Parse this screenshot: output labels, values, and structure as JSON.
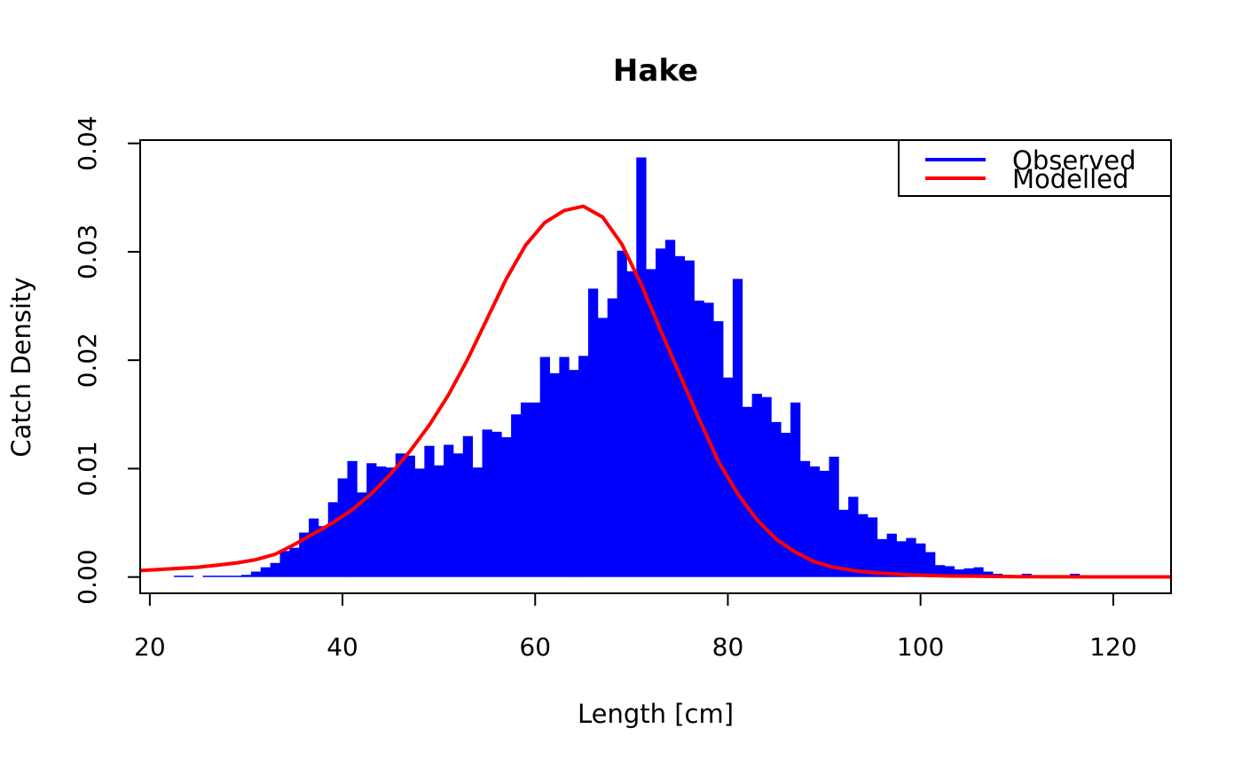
{
  "chart_data": {
    "type": "bar",
    "title": "Hake",
    "xlabel": "Length [cm]",
    "ylabel": "Catch Density",
    "xlim": [
      19,
      126
    ],
    "ylim": [
      -0.0015,
      0.0403
    ],
    "x_ticks": [
      20,
      40,
      60,
      80,
      100,
      120
    ],
    "y_ticks": [
      0.0,
      0.01,
      0.02,
      0.03,
      0.04
    ],
    "x_tick_labels": [
      "20",
      "40",
      "60",
      "80",
      "100",
      "120"
    ],
    "y_tick_labels": [
      "0.00",
      "0.01",
      "0.02",
      "0.03",
      "0.04"
    ],
    "grid": false,
    "legend": {
      "position": "top-right",
      "entries": [
        {
          "label": "Observed",
          "color": "#0000ff"
        },
        {
          "label": "Modelled",
          "color": "#ff0000"
        }
      ]
    },
    "series": [
      {
        "name": "Observed",
        "type": "bar",
        "color": "#0000ff",
        "bin_width": 1,
        "x": [
          23,
          24,
          25,
          26,
          27,
          28,
          29,
          30,
          31,
          32,
          33,
          34,
          35,
          36,
          37,
          38,
          39,
          40,
          41,
          42,
          43,
          44,
          45,
          46,
          47,
          48,
          49,
          50,
          51,
          52,
          53,
          54,
          55,
          56,
          57,
          58,
          59,
          60,
          61,
          62,
          63,
          64,
          65,
          66,
          67,
          68,
          69,
          70,
          71,
          72,
          73,
          74,
          75,
          76,
          77,
          78,
          79,
          80,
          81,
          82,
          83,
          84,
          85,
          86,
          87,
          88,
          89,
          90,
          91,
          92,
          93,
          94,
          95,
          96,
          97,
          98,
          99,
          100,
          101,
          102,
          103,
          104,
          105,
          106,
          107,
          108,
          109,
          110,
          111,
          112,
          113,
          114,
          115,
          116,
          117,
          118,
          119,
          120,
          121,
          122,
          123,
          124,
          125
        ],
        "values": [
          5e-05,
          5e-05,
          0,
          5e-05,
          0.0001,
          0.0001,
          0.0001,
          0.0002,
          0.0005,
          0.0009,
          0.0013,
          0.0024,
          0.0027,
          0.0041,
          0.0054,
          0.0047,
          0.0069,
          0.0091,
          0.0107,
          0.0078,
          0.0105,
          0.0102,
          0.0101,
          0.0114,
          0.0112,
          0.01,
          0.0121,
          0.0103,
          0.0122,
          0.0114,
          0.013,
          0.0101,
          0.0136,
          0.0134,
          0.0129,
          0.015,
          0.0161,
          0.0161,
          0.0203,
          0.0188,
          0.0203,
          0.0191,
          0.0204,
          0.0266,
          0.0239,
          0.0257,
          0.0301,
          0.0282,
          0.0387,
          0.0284,
          0.0303,
          0.0311,
          0.0296,
          0.0292,
          0.0255,
          0.0253,
          0.0236,
          0.0184,
          0.0275,
          0.0157,
          0.0169,
          0.0166,
          0.0143,
          0.0133,
          0.0161,
          0.0107,
          0.0102,
          0.0098,
          0.0111,
          0.0062,
          0.0074,
          0.0058,
          0.0055,
          0.0035,
          0.004,
          0.0033,
          0.0036,
          0.0031,
          0.0023,
          0.0011,
          0.001,
          0.0007,
          0.0008,
          0.0009,
          0.0005,
          0.0003,
          0.0002,
          0.0001,
          0.0003,
          0.0001,
          0.0001,
          0.0001,
          0.0001,
          0.0003,
          0.0001,
          0,
          0,
          0,
          0,
          0,
          0,
          0,
          0
        ]
      },
      {
        "name": "Modelled",
        "type": "line",
        "color": "#ff0000",
        "x": [
          19,
          21,
          23,
          25,
          27,
          29,
          31,
          33,
          35,
          37,
          39,
          41,
          43,
          45,
          47,
          49,
          51,
          53,
          55,
          57,
          59,
          61,
          63,
          65,
          67,
          69,
          71,
          73,
          75,
          77,
          79,
          81,
          83,
          85,
          87,
          89,
          91,
          93,
          95,
          97,
          99,
          101,
          103,
          105,
          107,
          109,
          111,
          113,
          115,
          117,
          119,
          121,
          123,
          125,
          126
        ],
        "values": [
          0.0006,
          0.0007,
          0.0008,
          0.0009,
          0.0011,
          0.0013,
          0.0016,
          0.0021,
          0.003,
          0.004,
          0.005,
          0.0062,
          0.0077,
          0.0095,
          0.0116,
          0.014,
          0.0168,
          0.0201,
          0.0238,
          0.0275,
          0.0306,
          0.0327,
          0.0338,
          0.0342,
          0.0332,
          0.0307,
          0.027,
          0.0228,
          0.0187,
          0.0146,
          0.0107,
          0.0077,
          0.0053,
          0.0035,
          0.0023,
          0.0014,
          0.0009,
          0.0006,
          0.0004,
          0.0003,
          0.0002,
          0.00015,
          0.0001,
          8e-05,
          6e-05,
          4e-05,
          3e-05,
          2e-05,
          2e-05,
          1e-05,
          1e-05,
          1e-05,
          1e-05,
          1e-05,
          1e-05
        ]
      }
    ]
  }
}
